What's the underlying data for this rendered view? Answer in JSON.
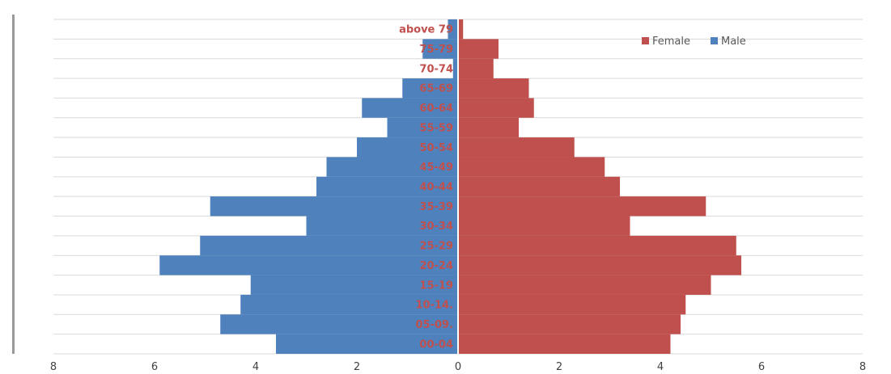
{
  "chart_data": {
    "type": "bar",
    "orientation": "horizontal-population-pyramid",
    "categories": [
      "00-04",
      "05-09.",
      "10-14.",
      "15-19",
      "20-24",
      "25-29",
      "30-34",
      "35-39",
      "40-44",
      "45-49",
      "50-54",
      "55-59",
      "60-64",
      "65-69",
      "70-74",
      "75-79",
      "above 79"
    ],
    "series": [
      {
        "name": "Male",
        "color": "#4f81bd",
        "values": [
          3.6,
          4.7,
          4.3,
          4.1,
          5.9,
          5.1,
          3.0,
          4.9,
          2.8,
          2.6,
          2.0,
          1.4,
          1.9,
          1.1,
          0.1,
          0.7,
          0.2
        ]
      },
      {
        "name": "Female",
        "color": "#c0504d",
        "values": [
          4.2,
          4.4,
          4.5,
          5.0,
          5.6,
          5.5,
          3.4,
          4.9,
          3.2,
          2.9,
          2.3,
          1.2,
          1.5,
          1.4,
          0.7,
          0.8,
          0.1
        ]
      }
    ],
    "xlim": [
      -8,
      8
    ],
    "xticks": [
      "8",
      "6",
      "4",
      "2",
      "0",
      "2",
      "4",
      "6",
      "8"
    ],
    "title": "",
    "xlabel": "",
    "ylabel": "",
    "grid": true,
    "legend": {
      "placement": "top-right",
      "entries": [
        "Female",
        "Male"
      ]
    },
    "category_label_color": "#c0504d",
    "gridline_color": "#d9d9d9"
  }
}
